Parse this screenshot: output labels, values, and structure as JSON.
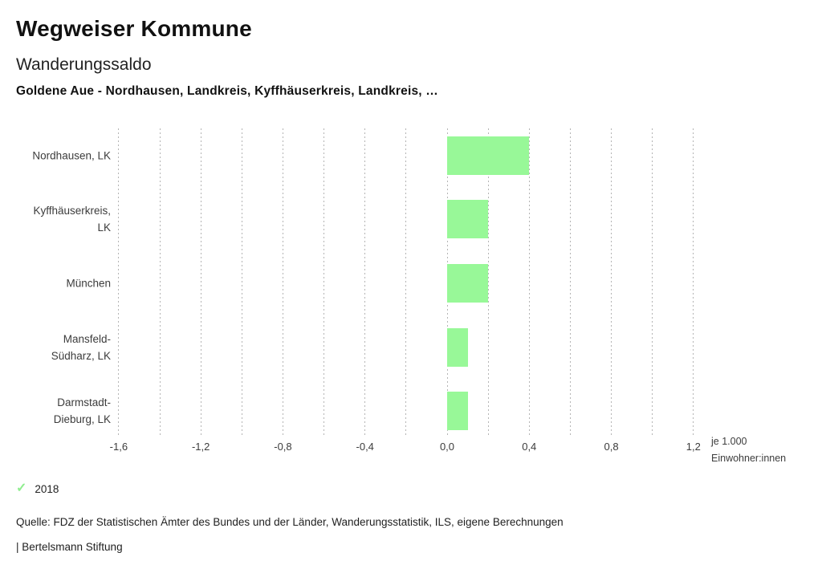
{
  "header": {
    "app_title": "Wegweiser Kommune",
    "chart_title": "Wanderungssaldo",
    "chart_subtitle": "Goldene Aue - Nordhausen, Landkreis, Kyffhäuserkreis, Landkreis, …"
  },
  "chart_data": {
    "type": "bar",
    "orientation": "horizontal",
    "title": "Wanderungssaldo",
    "categories": [
      "Nordhausen, LK",
      "Kyffhäuserkreis, LK",
      "München",
      "Mansfeld-Südharz, LK",
      "Darmstadt-Dieburg, LK"
    ],
    "category_lines": [
      [
        "Nordhausen, LK"
      ],
      [
        "Kyffhäuserkreis,",
        "LK"
      ],
      [
        "München"
      ],
      [
        "Mansfeld-",
        "Südharz, LK"
      ],
      [
        "Darmstadt-",
        "Dieburg, LK"
      ]
    ],
    "series": [
      {
        "name": "2018",
        "values": [
          0.4,
          0.2,
          0.2,
          0.1,
          0.1
        ]
      }
    ],
    "xlim": [
      -1.6,
      1.2
    ],
    "grid_step": 0.2,
    "grid": true,
    "xtick_labels": [
      {
        "value": -1.6,
        "label": "-1,6"
      },
      {
        "value": -1.2,
        "label": "-1,2"
      },
      {
        "value": -0.8,
        "label": "-0,8"
      },
      {
        "value": -0.4,
        "label": "-0,4"
      },
      {
        "value": 0.0,
        "label": "0,0"
      },
      {
        "value": 0.4,
        "label": "0,4"
      },
      {
        "value": 0.8,
        "label": "0,8"
      },
      {
        "value": 1.2,
        "label": "1,2"
      }
    ],
    "unit_label_lines": [
      "je 1.000",
      "Einwohner:innen"
    ],
    "xlabel": "je 1.000 Einwohner:innen",
    "ylabel": "",
    "bar_color": "#98f898",
    "grid_color": "#b4b4b4",
    "legend_position": "bottom"
  },
  "legend": {
    "check_icon": "✓",
    "check_color": "#90ee90",
    "year": "2018"
  },
  "footer": {
    "source": "Quelle: FDZ der Statistischen Ämter des Bundes und der Länder, Wanderungsstatistik, ILS, eigene Berechnungen",
    "attribution": "| Bertelsmann Stiftung"
  }
}
